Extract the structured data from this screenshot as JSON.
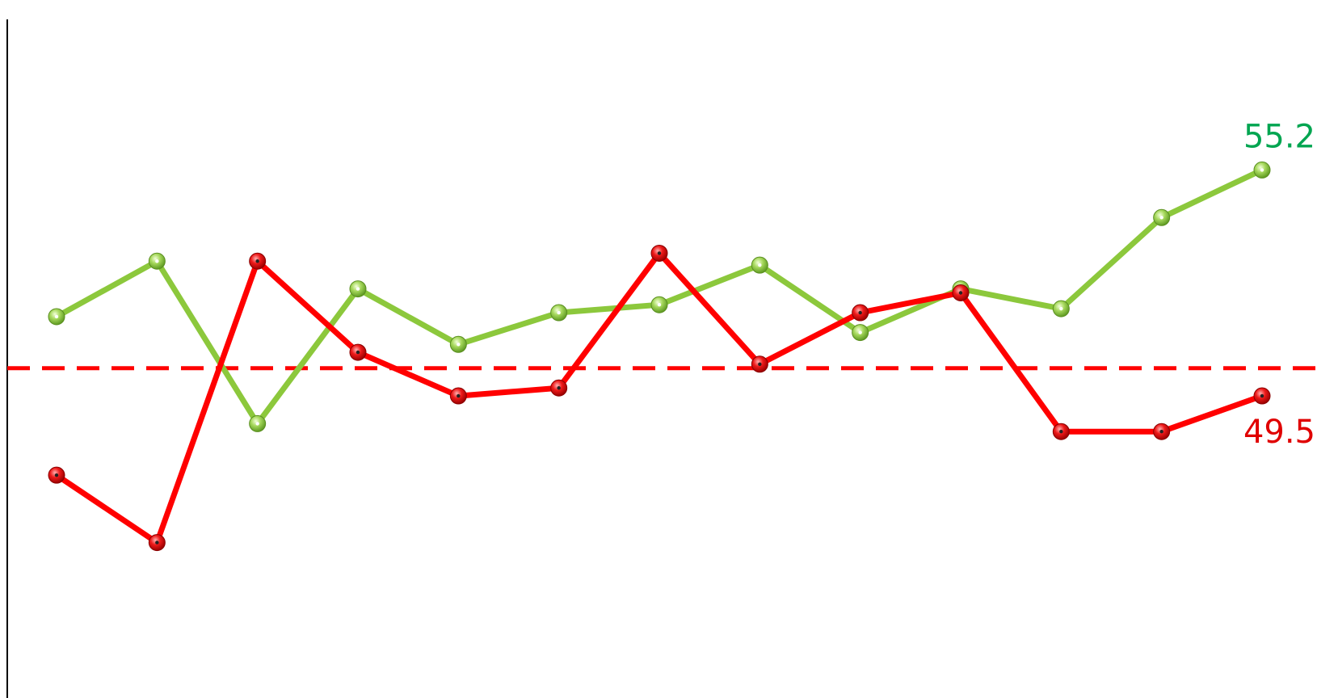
{
  "chart_data": {
    "type": "line",
    "title": "",
    "xlabel": "",
    "ylabel": "",
    "x": [
      1,
      2,
      3,
      4,
      5,
      6,
      7,
      8,
      9,
      10,
      11,
      12,
      13
    ],
    "ylim": [
      42,
      59
    ],
    "reference_line": {
      "value": 50.2,
      "color": "#ff0000",
      "style": "dashed"
    },
    "grid": false,
    "legend": "none",
    "series": [
      {
        "color": "#8cc83c",
        "label_color": "#00a550",
        "values": [
          51.5,
          52.9,
          48.8,
          52.2,
          50.8,
          51.6,
          51.8,
          52.8,
          51.1,
          52.2,
          51.7,
          54.0,
          55.2
        ],
        "end_label": "55.2"
      },
      {
        "color": "#ff0000",
        "label_color": "#e00000",
        "values": [
          47.5,
          45.8,
          52.9,
          50.6,
          49.5,
          49.7,
          53.1,
          50.3,
          51.6,
          52.1,
          48.6,
          48.6,
          49.5
        ],
        "end_label": "49.5"
      }
    ]
  }
}
